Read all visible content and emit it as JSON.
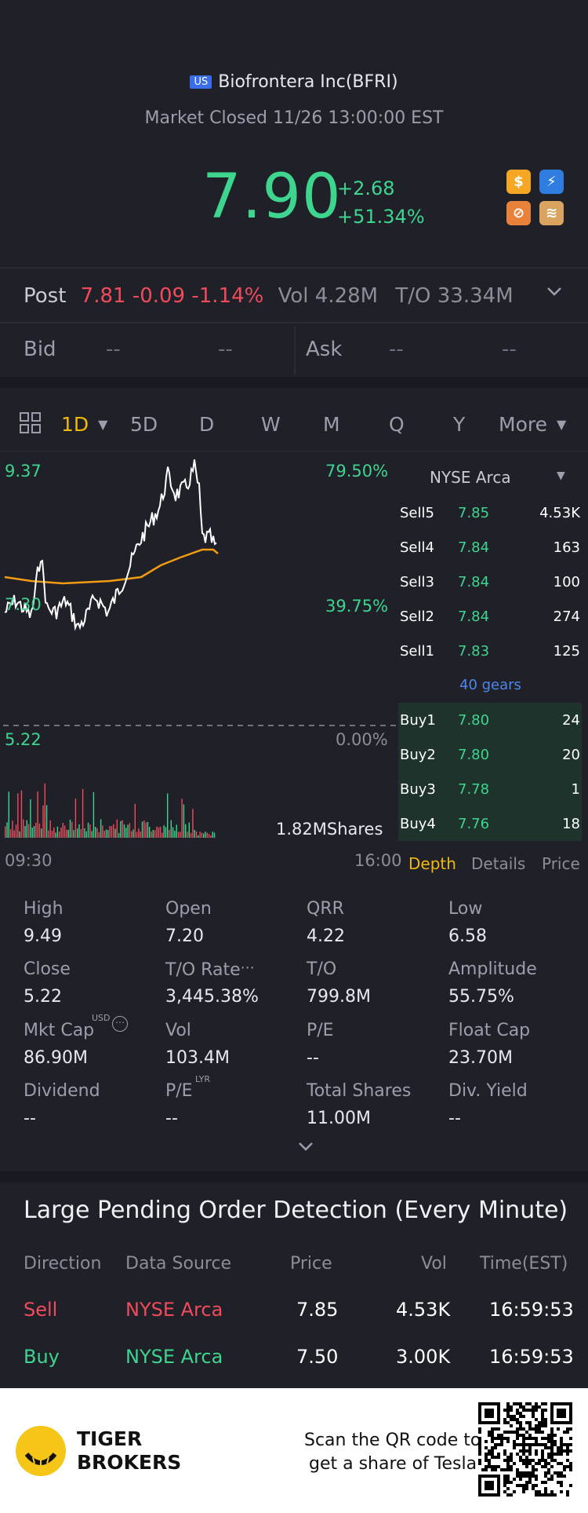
{
  "header": {
    "market_badge": "US",
    "title": "Biofrontera Inc(BFRI)",
    "status": "Market Closed 11/26 13:00:00 EST",
    "price": "7.90",
    "change_abs": "+2.68",
    "change_pct": "+51.34%",
    "tiles": [
      {
        "icon": "dollar-icon",
        "color": "#f5a623",
        "glyph": "$"
      },
      {
        "icon": "lightning-icon",
        "color": "#2f7de1",
        "glyph": "⚡"
      },
      {
        "icon": "no-short-icon",
        "color": "#e8823a",
        "glyph": "⊘"
      },
      {
        "icon": "stack-icon",
        "color": "#d9a360",
        "glyph": "≋"
      }
    ]
  },
  "post": {
    "label": "Post",
    "price": "7.81",
    "change": "-0.09",
    "pct": "-1.14%",
    "vol": "Vol 4.28M",
    "turnover": "T/O 33.34M"
  },
  "quote": {
    "bid_label": "Bid",
    "bid_price": "--",
    "bid_size": "--",
    "ask_label": "Ask",
    "ask_price": "--",
    "ask_size": "--"
  },
  "tabs": {
    "active": "1D",
    "items": [
      "5D",
      "D",
      "W",
      "M",
      "Q",
      "Y"
    ],
    "more": "More"
  },
  "chart": {
    "y_high": "9.37",
    "y_high_pct": "79.50%",
    "y_mid": "7.30",
    "y_mid_pct": "39.75%",
    "y_low": "5.22",
    "y_low_pct": "0.00%",
    "volume_label": "1.82MShares",
    "time_start": "09:30",
    "time_end": "16:00",
    "colors": {
      "price": "#ffffff",
      "avg": "#f39c12",
      "up": "#3ed58f",
      "down": "#f04b5c"
    }
  },
  "order_book": {
    "exchange": "NYSE Arca",
    "sells": [
      {
        "label": "Sell5",
        "price": "7.85",
        "vol": "4.53K"
      },
      {
        "label": "Sell4",
        "price": "7.84",
        "vol": "163"
      },
      {
        "label": "Sell3",
        "price": "7.84",
        "vol": "100"
      },
      {
        "label": "Sell2",
        "price": "7.84",
        "vol": "274"
      },
      {
        "label": "Sell1",
        "price": "7.83",
        "vol": "125"
      }
    ],
    "gears": "40 gears",
    "buys": [
      {
        "label": "Buy1",
        "price": "7.80",
        "vol": "24"
      },
      {
        "label": "Buy2",
        "price": "7.80",
        "vol": "20"
      },
      {
        "label": "Buy3",
        "price": "7.78",
        "vol": "1"
      },
      {
        "label": "Buy4",
        "price": "7.76",
        "vol": "18"
      }
    ],
    "tabs": [
      "Depth",
      "Details",
      "Price"
    ]
  },
  "stats": [
    {
      "label": "High",
      "value": "9.49"
    },
    {
      "label": "Open",
      "value": "7.20"
    },
    {
      "label": "QRR",
      "value": "4.22"
    },
    {
      "label": "Low",
      "value": "6.58"
    },
    {
      "label": "Close",
      "value": "5.22"
    },
    {
      "label": "T/O Rate",
      "value": "3,445.38%"
    },
    {
      "label": "T/O",
      "value": "799.8M"
    },
    {
      "label": "Amplitude",
      "value": "55.75%"
    },
    {
      "label": "Mkt Cap",
      "value": "86.90M"
    },
    {
      "label": "Vol",
      "value": "103.4M"
    },
    {
      "label": "P/E",
      "value": "--"
    },
    {
      "label": "Float Cap",
      "value": "23.70M"
    },
    {
      "label": "Dividend",
      "value": "--"
    },
    {
      "label": "P/E",
      "value": "--"
    },
    {
      "label": "Total Shares",
      "value": "11.00M"
    },
    {
      "label": "Div. Yield",
      "value": "--"
    }
  ],
  "stat_superscripts": {
    "mkt_cap": "USD",
    "pe_lyr": "LYR"
  },
  "large_orders": {
    "title": "Large Pending Order Detection (Every Minute)",
    "headers": [
      "Direction",
      "Data Source",
      "Price",
      "Vol",
      "Time(EST)"
    ],
    "rows": [
      {
        "direction": "Sell",
        "source": "NYSE Arca",
        "price": "7.85",
        "vol": "4.53K",
        "time": "16:59:53"
      },
      {
        "direction": "Buy",
        "source": "NYSE Arca",
        "price": "7.50",
        "vol": "3.00K",
        "time": "16:59:53"
      }
    ]
  },
  "footer": {
    "brand_line1": "TIGER",
    "brand_line2": "BROKERS",
    "cta_line1": "Scan the QR code to",
    "cta_line2": "get a share of Tesla"
  }
}
